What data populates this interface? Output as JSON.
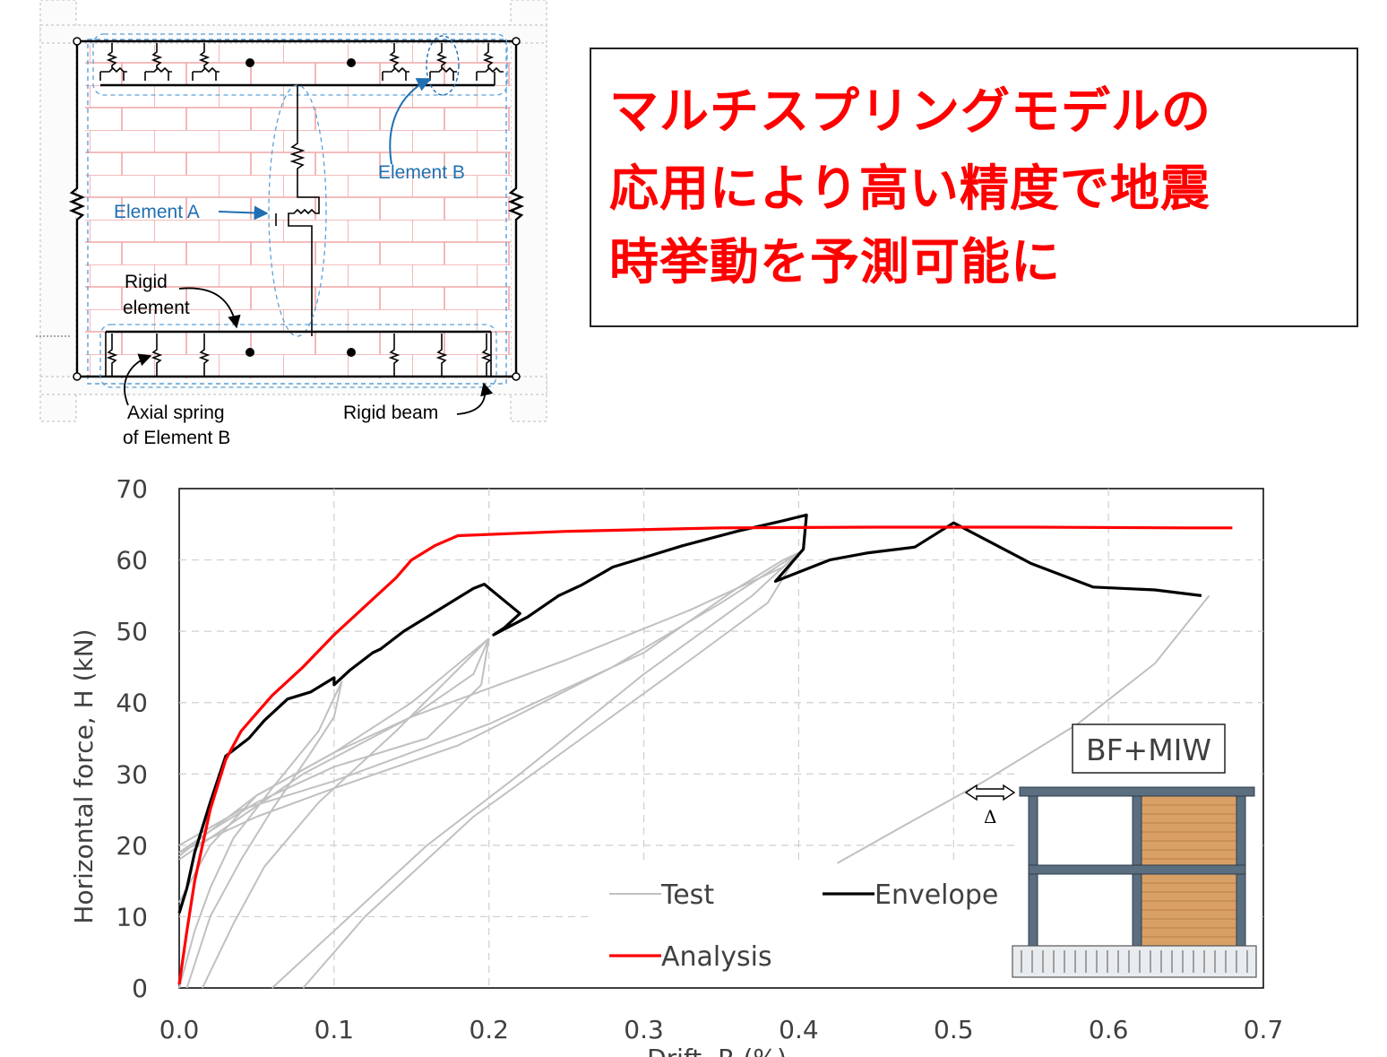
{
  "diagram": {
    "labels": {
      "element_a": "Element A",
      "element_b": "Element B",
      "rigid_element_line1": "Rigid",
      "rigid_element_line2": "element",
      "axial_spring_line1": "Axial spring",
      "axial_spring_line2": "of Element B",
      "rigid_beam": "Rigid beam"
    },
    "colors": {
      "annotation": "#1f6fb2",
      "brick": "#f2a6a6",
      "outline": "#000000"
    }
  },
  "headline": {
    "lines": [
      "マルチスプリングモデルの",
      "応用により高い精度で地震",
      "時挙動を予測可能に"
    ],
    "color": "#ff0000"
  },
  "chart_data": {
    "type": "line",
    "xlabel": "Drift, R (%)",
    "ylabel": "Horizontal force, H (kN)",
    "xlim": [
      0,
      0.7
    ],
    "ylim": [
      0,
      70
    ],
    "xticks": [
      "0.0",
      "0.1",
      "0.2",
      "0.3",
      "0.4",
      "0.5",
      "0.6",
      "0.7"
    ],
    "yticks": [
      "0",
      "10",
      "20",
      "30",
      "40",
      "50",
      "60",
      "70"
    ],
    "grid": "dashed",
    "legend_position": "bottom-center",
    "inset_label": "BF+MIW",
    "inset_symbol": "Δ",
    "series": [
      {
        "name": "Test",
        "color": "#c0c0c0",
        "segments": [
          [
            [
              0.0,
              18.5
            ],
            [
              0.02,
              22
            ],
            [
              0.05,
              27
            ],
            [
              0.1,
              33
            ],
            [
              0.15,
              38
            ],
            [
              0.19,
              44
            ],
            [
              0.2,
              49
            ]
          ],
          [
            [
              0.0,
              0
            ],
            [
              0.01,
              8
            ],
            [
              0.02,
              14
            ],
            [
              0.035,
              21
            ],
            [
              0.06,
              28
            ],
            [
              0.09,
              36
            ],
            [
              0.105,
              43
            ]
          ],
          [
            [
              0.005,
              0
            ],
            [
              0.02,
              10
            ],
            [
              0.04,
              18
            ],
            [
              0.06,
              25
            ],
            [
              0.085,
              33
            ],
            [
              0.1,
              38
            ],
            [
              0.105,
              43
            ]
          ],
          [
            [
              0.0,
              19
            ],
            [
              0.02,
              22
            ],
            [
              0.05,
              26
            ],
            [
              0.1,
              31
            ],
            [
              0.16,
              35
            ],
            [
              0.195,
              42.5
            ],
            [
              0.2,
              49
            ]
          ],
          [
            [
              0.0,
              12
            ],
            [
              0.02,
              20
            ],
            [
              0.05,
              27
            ],
            [
              0.1,
              33
            ],
            [
              0.15,
              40
            ],
            [
              0.2,
              49
            ]
          ],
          [
            [
              0.015,
              0
            ],
            [
              0.035,
              9
            ],
            [
              0.055,
              17
            ],
            [
              0.09,
              26
            ],
            [
              0.14,
              36
            ],
            [
              0.2,
              49
            ]
          ],
          [
            [
              0.0,
              20
            ],
            [
              0.04,
              25
            ],
            [
              0.1,
              29
            ],
            [
              0.2,
              37
            ],
            [
              0.3,
              47
            ],
            [
              0.36,
              56
            ],
            [
              0.39,
              60
            ],
            [
              0.4,
              61
            ]
          ],
          [
            [
              0.0,
              19
            ],
            [
              0.05,
              24
            ],
            [
              0.1,
              28
            ],
            [
              0.18,
              34
            ],
            [
              0.28,
              45
            ],
            [
              0.35,
              54
            ],
            [
              0.4,
              61
            ]
          ],
          [
            [
              0.0,
              18
            ],
            [
              0.08,
              30
            ],
            [
              0.15,
              38
            ],
            [
              0.25,
              46
            ],
            [
              0.33,
              53
            ],
            [
              0.39,
              59
            ],
            [
              0.4,
              61
            ]
          ],
          [
            [
              0.06,
              0
            ],
            [
              0.1,
              8
            ],
            [
              0.16,
              20
            ],
            [
              0.22,
              30
            ],
            [
              0.3,
              44
            ],
            [
              0.37,
              55
            ],
            [
              0.4,
              61
            ]
          ],
          [
            [
              0.08,
              0
            ],
            [
              0.12,
              10
            ],
            [
              0.19,
              24
            ],
            [
              0.26,
              35
            ],
            [
              0.33,
              46
            ],
            [
              0.38,
              54
            ],
            [
              0.4,
              61
            ]
          ],
          [
            [
              0.425,
              17.5
            ],
            [
              0.47,
              23
            ],
            [
              0.52,
              29
            ],
            [
              0.58,
              37
            ],
            [
              0.63,
              45.5
            ],
            [
              0.665,
              55
            ]
          ]
        ]
      },
      {
        "name": "Envelope",
        "color": "#000000",
        "points": [
          [
            0.0,
            10.5
          ],
          [
            0.005,
            14
          ],
          [
            0.01,
            19
          ],
          [
            0.02,
            26
          ],
          [
            0.03,
            32.5
          ],
          [
            0.045,
            35
          ],
          [
            0.055,
            37.5
          ],
          [
            0.07,
            40.5
          ],
          [
            0.085,
            41.5
          ],
          [
            0.1,
            43.5
          ],
          [
            0.1,
            42.5
          ],
          [
            0.11,
            44.5
          ],
          [
            0.125,
            47
          ],
          [
            0.13,
            47.5
          ],
          [
            0.145,
            50
          ],
          [
            0.16,
            52
          ],
          [
            0.175,
            54
          ],
          [
            0.19,
            56
          ],
          [
            0.197,
            56.6
          ],
          [
            0.22,
            52.5
          ],
          [
            0.21,
            50.5
          ],
          [
            0.203,
            49.5
          ],
          [
            0.225,
            52
          ],
          [
            0.245,
            55
          ],
          [
            0.26,
            56.5
          ],
          [
            0.28,
            59
          ],
          [
            0.295,
            60
          ],
          [
            0.325,
            62
          ],
          [
            0.36,
            64
          ],
          [
            0.39,
            65.5
          ],
          [
            0.405,
            66.3
          ],
          [
            0.403,
            61.5
          ],
          [
            0.385,
            57
          ],
          [
            0.42,
            60
          ],
          [
            0.445,
            61
          ],
          [
            0.475,
            61.8
          ],
          [
            0.5,
            65.2
          ],
          [
            0.55,
            59.5
          ],
          [
            0.59,
            56.2
          ],
          [
            0.63,
            55.8
          ],
          [
            0.66,
            55
          ]
        ]
      },
      {
        "name": "Analysis",
        "color": "#ff0000",
        "points": [
          [
            0.0,
            0.5
          ],
          [
            0.005,
            8
          ],
          [
            0.01,
            15
          ],
          [
            0.02,
            25
          ],
          [
            0.03,
            32
          ],
          [
            0.04,
            36
          ],
          [
            0.05,
            38.5
          ],
          [
            0.06,
            41
          ],
          [
            0.08,
            45
          ],
          [
            0.1,
            49.5
          ],
          [
            0.12,
            53.5
          ],
          [
            0.14,
            57.5
          ],
          [
            0.15,
            60
          ],
          [
            0.165,
            62
          ],
          [
            0.18,
            63.4
          ],
          [
            0.25,
            64
          ],
          [
            0.35,
            64.5
          ],
          [
            0.45,
            64.6
          ],
          [
            0.55,
            64.6
          ],
          [
            0.65,
            64.5
          ],
          [
            0.68,
            64.5
          ]
        ]
      }
    ]
  }
}
